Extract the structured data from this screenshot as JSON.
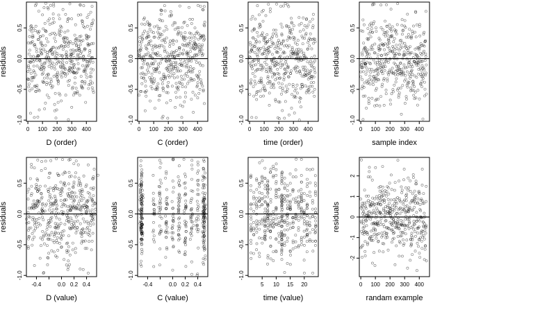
{
  "chart_data": [
    {
      "type": "scatter",
      "xlabel": "D (order)",
      "ylabel": "residuals",
      "xlim": [
        -10,
        470
      ],
      "ylim": [
        -1.02,
        0.92
      ],
      "xticks": [
        0,
        100,
        200,
        300,
        400
      ],
      "yticks": [
        -1.0,
        -0.5,
        0.0,
        0.5
      ],
      "ytick_labels": [
        "-1.0",
        "-0.5",
        "0.0",
        "0.5"
      ],
      "hline": 0,
      "points": {
        "mode": "order",
        "n": 450,
        "seed": 11,
        "sd": 0.38,
        "clip": [
          -1.0,
          0.9
        ]
      }
    },
    {
      "type": "scatter",
      "xlabel": "C (order)",
      "ylabel": "residuals",
      "xlim": [
        -10,
        470
      ],
      "ylim": [
        -1.02,
        0.92
      ],
      "xticks": [
        0,
        100,
        200,
        300,
        400
      ],
      "yticks": [
        -1.0,
        -0.5,
        0.0,
        0.5
      ],
      "ytick_labels": [
        "-1.0",
        "-0.5",
        "0.0",
        "0.5"
      ],
      "hline": 0,
      "points": {
        "mode": "order",
        "n": 450,
        "seed": 23,
        "sd": 0.38,
        "clip": [
          -1.0,
          0.9
        ]
      }
    },
    {
      "type": "scatter",
      "xlabel": "time (order)",
      "ylabel": "residuals",
      "xlim": [
        -10,
        470
      ],
      "ylim": [
        -1.02,
        0.92
      ],
      "xticks": [
        0,
        100,
        200,
        300,
        400
      ],
      "yticks": [
        -1.0,
        -0.5,
        0.0,
        0.5
      ],
      "ytick_labels": [
        "-1.0",
        "-0.5",
        "0.0",
        "0.5"
      ],
      "hline": 0,
      "points": {
        "mode": "order",
        "n": 450,
        "seed": 37,
        "sd": 0.38,
        "clip": [
          -1.0,
          0.9
        ]
      }
    },
    {
      "type": "scatter",
      "xlabel": "sample index",
      "ylabel": "residuals",
      "xlim": [
        -10,
        470
      ],
      "ylim": [
        -1.02,
        0.92
      ],
      "xticks": [
        0,
        100,
        200,
        300,
        400
      ],
      "yticks": [
        -1.0,
        -0.5,
        0.0,
        0.5
      ],
      "ytick_labels": [
        "-1.0",
        "-0.5",
        "0.0",
        "0.5"
      ],
      "hline": 0,
      "points": {
        "mode": "order",
        "n": 450,
        "seed": 41,
        "sd": 0.38,
        "clip": [
          -1.0,
          0.9
        ]
      }
    },
    {
      "type": "scatter",
      "xlabel": "D (value)",
      "ylabel": "residuals",
      "xlim": [
        -0.56,
        0.56
      ],
      "ylim": [
        -1.02,
        0.92
      ],
      "xticks": [
        -0.4,
        -0.2,
        0.0,
        0.2,
        0.4
      ],
      "xtick_labels": [
        "-0.4",
        "",
        "0.0",
        "0.2",
        "0.4"
      ],
      "yticks": [
        -1.0,
        -0.5,
        0.0,
        0.5
      ],
      "ytick_labels": [
        "-1.0",
        "-0.5",
        "0.0",
        "0.5"
      ],
      "hline": 0,
      "points": {
        "mode": "levels",
        "n": 450,
        "seed": 53,
        "sd": 0.38,
        "clip": [
          -1.0,
          0.9
        ],
        "levels": [
          -0.5,
          -0.4,
          -0.3,
          -0.2,
          -0.1,
          0.0,
          0.1,
          0.2,
          0.3,
          0.4,
          0.5
        ],
        "jitter": 0.03
      }
    },
    {
      "type": "scatter",
      "xlabel": "C (value)",
      "ylabel": "residuals",
      "xlim": [
        -0.56,
        0.56
      ],
      "ylim": [
        -1.02,
        0.92
      ],
      "xticks": [
        -0.4,
        -0.2,
        0.0,
        0.2,
        0.4
      ],
      "xtick_labels": [
        "-0.4",
        "",
        "0.0",
        "0.2",
        "0.4"
      ],
      "yticks": [
        -1.0,
        -0.5,
        0.0,
        0.5
      ],
      "ytick_labels": [
        "-1.0",
        "-0.5",
        "0.0",
        "0.5"
      ],
      "hline": 0,
      "points": {
        "mode": "levels",
        "n": 450,
        "seed": 67,
        "sd": 0.38,
        "clip": [
          -1.0,
          0.9
        ],
        "levels": [
          -0.5,
          -0.5,
          -0.5,
          -0.3,
          -0.2,
          -0.1,
          0.0,
          0.1,
          0.2,
          0.3,
          0.4,
          0.5,
          0.5,
          0.5
        ],
        "jitter": 0.01
      }
    },
    {
      "type": "scatter",
      "xlabel": "time (value)",
      "ylabel": "residuals",
      "xlim": [
        0,
        25
      ],
      "ylim": [
        -1.02,
        0.92
      ],
      "xticks": [
        5,
        10,
        15,
        20
      ],
      "yticks": [
        -1.0,
        -0.5,
        0.0,
        0.5
      ],
      "ytick_labels": [
        "-1.0",
        "-0.5",
        "0.0",
        "0.5"
      ],
      "hline": 0,
      "points": {
        "mode": "levels",
        "n": 450,
        "seed": 79,
        "sd": 0.38,
        "clip": [
          -1.0,
          0.9
        ],
        "levels": [
          1,
          2,
          3,
          4,
          5,
          6,
          7,
          8,
          9,
          10,
          11,
          12,
          12,
          12,
          13,
          14,
          15,
          16,
          17,
          18,
          19,
          20,
          21,
          22,
          23,
          24
        ],
        "jitter": 0.05
      }
    },
    {
      "type": "scatter",
      "xlabel": "randam example",
      "ylabel": "residuals",
      "xlim": [
        -10,
        470
      ],
      "ylim": [
        -2.9,
        2.9
      ],
      "xticks": [
        0,
        100,
        200,
        300,
        400
      ],
      "yticks": [
        -2,
        -1,
        0,
        1,
        2
      ],
      "ytick_labels": [
        "-2",
        "-1",
        "0",
        "1",
        "2"
      ],
      "hline": 0,
      "points": {
        "mode": "order",
        "n": 450,
        "seed": 97,
        "sd": 1.0,
        "clip": [
          -2.8,
          2.8
        ]
      }
    }
  ]
}
